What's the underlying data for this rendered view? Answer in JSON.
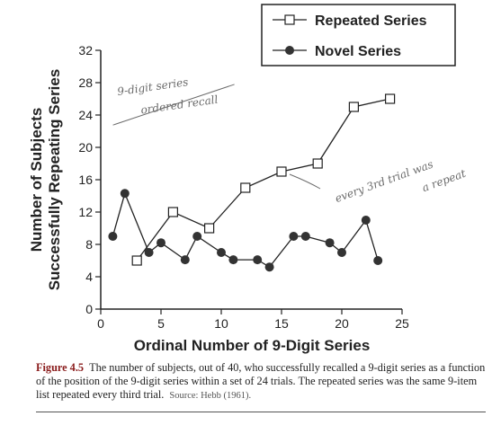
{
  "chart_data": {
    "type": "line",
    "xlabel": "Ordinal Number of 9-Digit Series",
    "ylabel_lines": [
      "Number of Subjects",
      "Successfully Repeating Series"
    ],
    "xlim": [
      0,
      25
    ],
    "ylim": [
      0,
      32
    ],
    "xticks": [
      0,
      5,
      10,
      15,
      20,
      25
    ],
    "yticks": [
      0,
      4,
      8,
      12,
      16,
      20,
      24,
      28,
      32
    ],
    "grid": false,
    "legend_position": "top-right",
    "series": [
      {
        "name": "Repeated Series",
        "marker": "open-square",
        "x": [
          3,
          6,
          9,
          12,
          15,
          18,
          21,
          24
        ],
        "y": [
          6,
          12,
          10,
          15,
          17,
          18,
          25,
          26
        ]
      },
      {
        "name": "Novel Series",
        "marker": "filled-circle",
        "x": [
          1,
          2,
          4,
          5,
          7,
          8,
          10,
          11,
          13,
          14,
          16,
          17,
          19,
          20,
          22,
          23
        ],
        "y": [
          9,
          14.3,
          7,
          8.2,
          6.1,
          9,
          7,
          6.1,
          6.1,
          5.2,
          9,
          9,
          8.2,
          7,
          11,
          6
        ]
      }
    ]
  },
  "annotations": {
    "note1_line1": "9-digit series",
    "note1_line2": "ordered recall",
    "note2_line1": "every 3rd trial was",
    "note2_line2": "a repeat"
  },
  "caption": {
    "label": "Figure 4.5",
    "text": "The number of subjects, out of 40, who successfully recalled a 9-digit series as a function of the position of the 9-digit series within a set of 24 trials. The repeated series was the same 9-item list repeated every third trial.",
    "source": "Source: Hebb (1961)."
  },
  "colors": {
    "ink": "#222222",
    "handwriting": "#6b6b6b",
    "figure_label": "#8a1c1c"
  }
}
